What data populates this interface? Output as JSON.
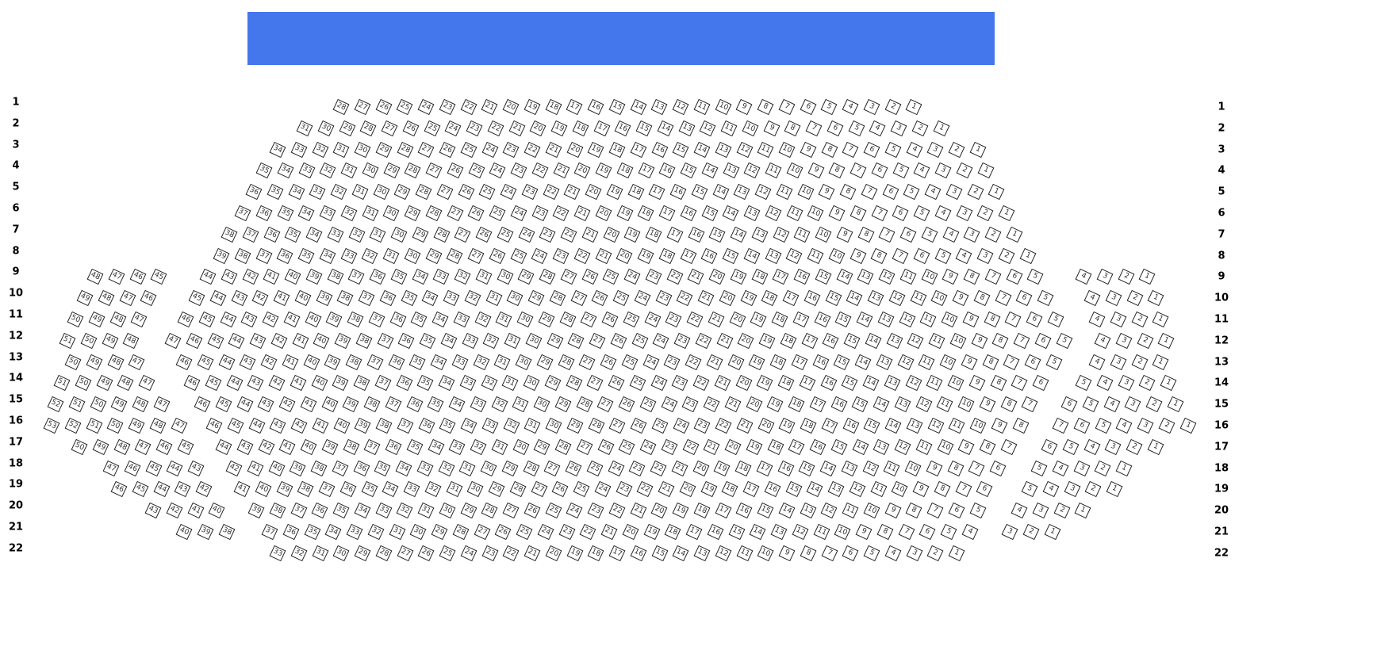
{
  "stage": {
    "color": "#4476ec"
  },
  "rows": [
    {
      "label": "1",
      "sections": [
        [
          28,
          1
        ]
      ]
    },
    {
      "label": "2",
      "sections": [
        [
          31,
          1
        ]
      ]
    },
    {
      "label": "3",
      "sections": [
        [
          34,
          1
        ]
      ]
    },
    {
      "label": "4",
      "sections": [
        [
          35,
          1
        ]
      ]
    },
    {
      "label": "5",
      "sections": [
        [
          36,
          1
        ]
      ]
    },
    {
      "label": "6",
      "sections": [
        [
          37,
          1
        ]
      ]
    },
    {
      "label": "7",
      "sections": [
        [
          38,
          1
        ]
      ]
    },
    {
      "label": "8",
      "sections": [
        [
          39,
          1
        ]
      ]
    },
    {
      "label": "9",
      "sections": [
        [
          48,
          45
        ],
        [
          44,
          5
        ],
        [
          4,
          1
        ]
      ]
    },
    {
      "label": "10",
      "sections": [
        [
          49,
          46
        ],
        [
          45,
          5
        ],
        [
          4,
          1
        ]
      ]
    },
    {
      "label": "11",
      "sections": [
        [
          50,
          47
        ],
        [
          46,
          5
        ],
        [
          4,
          1
        ]
      ]
    },
    {
      "label": "12",
      "sections": [
        [
          51,
          48
        ],
        [
          47,
          5
        ],
        [
          4,
          1
        ]
      ]
    },
    {
      "label": "13",
      "sections": [
        [
          50,
          47
        ],
        [
          46,
          5
        ],
        [
          4,
          1
        ]
      ]
    },
    {
      "label": "14",
      "sections": [
        [
          51,
          47
        ],
        [
          46,
          6
        ],
        [
          5,
          1
        ]
      ]
    },
    {
      "label": "15",
      "sections": [
        [
          52,
          47
        ],
        [
          46,
          7
        ],
        [
          6,
          1
        ]
      ]
    },
    {
      "label": "16",
      "sections": [
        [
          53,
          47
        ],
        [
          46,
          8
        ],
        [
          7,
          1
        ]
      ]
    },
    {
      "label": "17",
      "sections": [
        [
          50,
          45
        ],
        [
          44,
          7
        ],
        [
          6,
          1
        ]
      ]
    },
    {
      "label": "18",
      "sections": [
        [
          47,
          43
        ],
        [
          42,
          6
        ],
        [
          5,
          1
        ]
      ]
    },
    {
      "label": "19",
      "sections": [
        [
          46,
          42
        ],
        [
          41,
          6
        ],
        [
          5,
          1
        ]
      ]
    },
    {
      "label": "20",
      "sections": [
        [
          43,
          40
        ],
        [
          39,
          5
        ],
        [
          4,
          1
        ]
      ]
    },
    {
      "label": "21",
      "sections": [
        [
          40,
          38
        ],
        [
          37,
          4
        ],
        [
          3,
          1
        ]
      ]
    },
    {
      "label": "22",
      "sections": [
        [
          33,
          1
        ]
      ]
    }
  ]
}
